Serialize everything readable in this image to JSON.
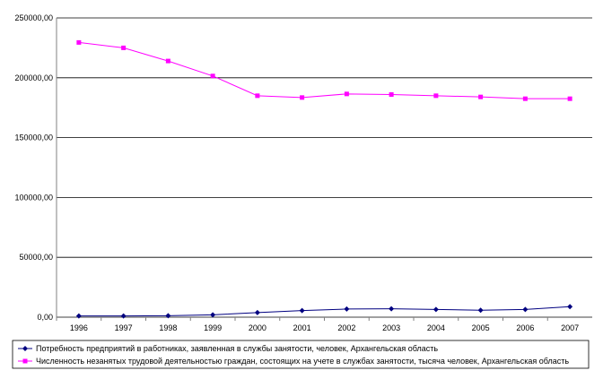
{
  "chart_data": {
    "type": "line",
    "categories": [
      "1996",
      "1997",
      "1998",
      "1999",
      "2000",
      "2001",
      "2002",
      "2003",
      "2004",
      "2005",
      "2006",
      "2007"
    ],
    "series": [
      {
        "name": "Потребность предприятий в работниках, заявленная в службы занятости, человек, Архангельская область",
        "color": "#000080",
        "marker": "diamond",
        "values": [
          1000,
          1000,
          1200,
          2000,
          3800,
          5500,
          6800,
          7000,
          6500,
          5800,
          6500,
          8800
        ]
      },
      {
        "name": "Численность незанятых трудовой деятельностью граждан, состоящих на учете в службах занятости, тысяча человек, Архангельская область",
        "color": "#ff00ff",
        "marker": "square",
        "values": [
          229500,
          225000,
          214000,
          201500,
          185000,
          183500,
          186500,
          186000,
          185000,
          184000,
          182500,
          182500
        ]
      }
    ],
    "ylim": [
      0,
      250000
    ],
    "yticks": [
      {
        "value": 0,
        "label": "0,00"
      },
      {
        "value": 50000,
        "label": "50000,00"
      },
      {
        "value": 100000,
        "label": "100000,00"
      },
      {
        "value": 150000,
        "label": "150000,00"
      },
      {
        "value": 200000,
        "label": "200000,00"
      },
      {
        "value": 250000,
        "label": "250000,00"
      }
    ],
    "grid": true,
    "legend": "bottom"
  }
}
